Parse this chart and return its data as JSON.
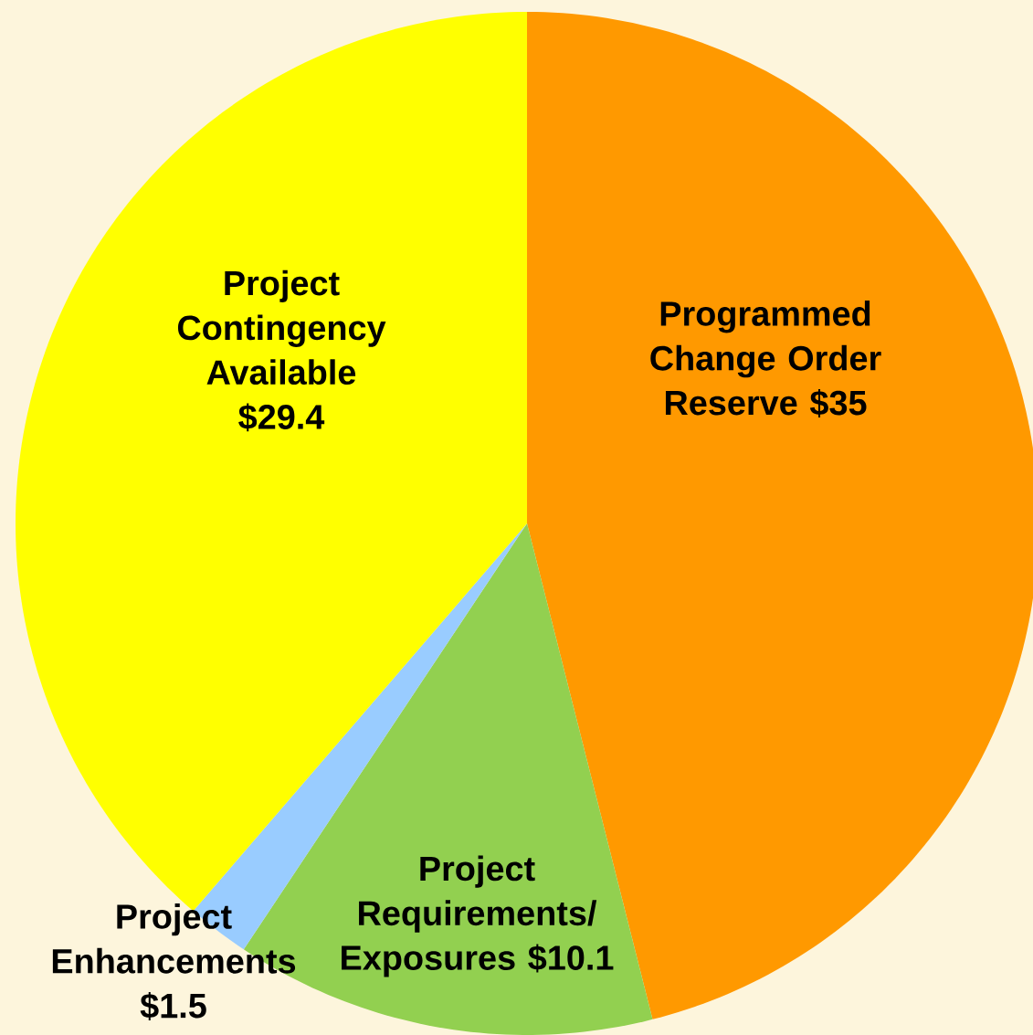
{
  "chart_data": {
    "type": "pie",
    "categories": [
      "Programmed Change Order Reserve",
      "Project Requirements/ Exposures",
      "Project Enhancements",
      "Project Contingency Available"
    ],
    "values": [
      35,
      10.1,
      1.5,
      29.4
    ],
    "value_labels": [
      "$35",
      "$10.1",
      "$1.5",
      "$29.4"
    ],
    "colors": [
      "#ff9900",
      "#92d050",
      "#99ccff",
      "#ffff00"
    ]
  }
}
